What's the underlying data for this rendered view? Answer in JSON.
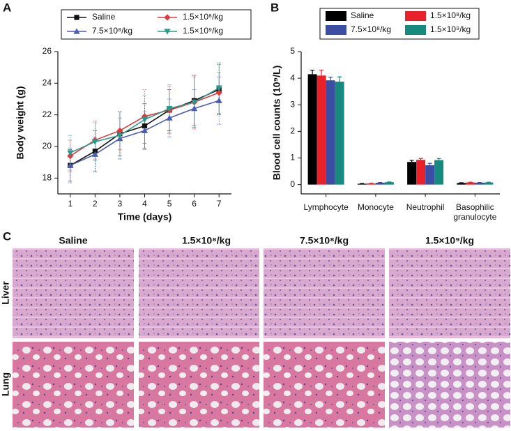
{
  "chart_data": [
    {
      "type": "line",
      "panel_label": "A",
      "xlabel": "Time (days)",
      "ylabel": "Body weight (g)",
      "x": [
        1,
        2,
        3,
        4,
        5,
        6,
        7
      ],
      "xlim": [
        0.5,
        7.5
      ],
      "xticks": [
        1,
        2,
        3,
        4,
        5,
        6,
        7
      ],
      "ylim": [
        17,
        26
      ],
      "yticks": [
        18,
        20,
        22,
        24,
        26
      ],
      "series": [
        {
          "name": "Saline",
          "color": "#111111",
          "marker": "square",
          "values": [
            18.8,
            19.7,
            20.8,
            21.3,
            22.3,
            22.9,
            23.6
          ],
          "errors": [
            1.0,
            1.3,
            1.4,
            1.4,
            1.3,
            1.6,
            1.6
          ]
        },
        {
          "name": "1.5×10⁸/kg",
          "color": "#e03a3e",
          "marker": "diamond",
          "values": [
            19.4,
            20.4,
            21.0,
            21.9,
            22.3,
            22.8,
            23.4
          ],
          "errors": [
            1.0,
            1.2,
            1.2,
            1.7,
            1.5,
            1.7,
            1.3
          ]
        },
        {
          "name": "7.5×10⁸/kg",
          "color": "#4a5db0",
          "marker": "triangle",
          "values": [
            18.8,
            19.5,
            20.5,
            21.0,
            21.8,
            22.4,
            22.9
          ],
          "errors": [
            1.1,
            1.1,
            1.3,
            1.2,
            1.2,
            1.2,
            1.5
          ]
        },
        {
          "name": "1.5×10⁹/kg",
          "color": "#2a9a8c",
          "marker": "triangle-down",
          "values": [
            19.6,
            20.3,
            20.7,
            21.7,
            22.4,
            22.8,
            23.7
          ],
          "errors": [
            1.1,
            1.2,
            1.5,
            1.5,
            1.5,
            1.6,
            1.6
          ]
        }
      ]
    },
    {
      "type": "bar",
      "panel_label": "B",
      "ylabel": "Blood cell counts (10⁹/L)",
      "categories": [
        "Lymphocyte",
        "Monocyte",
        "Neutrophil",
        "Basophilic granulocyte"
      ],
      "ylim": [
        -0.35,
        5
      ],
      "yticks": [
        0,
        1,
        2,
        3,
        4,
        5
      ],
      "series": [
        {
          "name": "Saline",
          "color": "#000000",
          "values": [
            4.15,
            0.03,
            0.85,
            0.06
          ],
          "errors": [
            0.15,
            0.01,
            0.06,
            0.01
          ]
        },
        {
          "name": "1.5×10⁸/kg",
          "color": "#e8212b",
          "values": [
            4.1,
            0.04,
            0.93,
            0.08
          ],
          "errors": [
            0.2,
            0.01,
            0.05,
            0.01
          ]
        },
        {
          "name": "7.5×10⁸/kg",
          "color": "#3b4ea3",
          "values": [
            3.92,
            0.07,
            0.73,
            0.07
          ],
          "errors": [
            0.12,
            0.01,
            0.07,
            0.01
          ]
        },
        {
          "name": "1.5×10⁹/kg",
          "color": "#178a80",
          "values": [
            3.87,
            0.09,
            0.92,
            0.08
          ],
          "errors": [
            0.18,
            0.01,
            0.06,
            0.01
          ]
        }
      ]
    }
  ],
  "histology": {
    "panel_label": "C",
    "columns": [
      "Saline",
      "1.5×10⁸/kg",
      "7.5×10⁸/kg",
      "1.5×10⁹/kg"
    ],
    "rows": [
      "Liver",
      "Lung"
    ]
  }
}
